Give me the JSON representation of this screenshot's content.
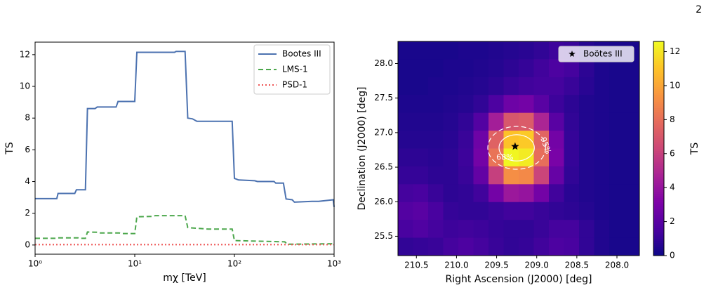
{
  "page_number": "2",
  "chart_data": [
    {
      "type": "line",
      "xscale": "log",
      "xlabel": "mχ [TeV]",
      "ylabel": "TS",
      "xlim": [
        1,
        1000
      ],
      "ylim": [
        -0.58,
        12.79
      ],
      "xticks": [
        {
          "value": 1,
          "label": "10⁰"
        },
        {
          "value": 10,
          "label": "10¹"
        },
        {
          "value": 100,
          "label": "10²"
        },
        {
          "value": 1000,
          "label": "10³"
        }
      ],
      "yticks": [
        0,
        2,
        4,
        6,
        8,
        10,
        12
      ],
      "legend": "upper right",
      "series": [
        {
          "name": "Bootes III",
          "color": "#4c72b0",
          "linestyle": "solid",
          "x": [
            1,
            1.65,
            1.7,
            2.5,
            2.6,
            3.2,
            3.35,
            4,
            4.2,
            6.5,
            6.8,
            10,
            10.5,
            25,
            26,
            32,
            34,
            38,
            42,
            95,
            100,
            110,
            160,
            170,
            250,
            260,
            310,
            330,
            380,
            400,
            600,
            700,
            980,
            1000
          ],
          "values": [
            2.92,
            2.92,
            3.25,
            3.25,
            3.48,
            3.48,
            8.6,
            8.6,
            8.7,
            8.7,
            9.05,
            9.05,
            12.15,
            12.15,
            12.2,
            12.2,
            8.0,
            7.95,
            7.8,
            7.8,
            4.2,
            4.1,
            4.05,
            4.0,
            4.0,
            3.9,
            3.9,
            2.9,
            2.85,
            2.7,
            2.75,
            2.75,
            2.85,
            2.4
          ]
        },
        {
          "name": "LMS-1",
          "color": "#4ca74c",
          "linestyle": "dashed",
          "x": [
            1,
            1.6,
            1.7,
            2.7,
            2.8,
            3.2,
            3.35,
            4.2,
            4.4,
            7,
            7.3,
            10,
            10.5,
            15,
            16,
            32,
            34,
            55,
            95,
            100,
            320,
            340,
            1000
          ],
          "values": [
            0.42,
            0.42,
            0.45,
            0.45,
            0.42,
            0.42,
            0.82,
            0.8,
            0.76,
            0.76,
            0.72,
            0.72,
            1.78,
            1.8,
            1.85,
            1.85,
            1.1,
            1.0,
            1.0,
            0.28,
            0.2,
            0.05,
            0.08
          ]
        },
        {
          "name": "PSD-1",
          "color": "#ee5555",
          "linestyle": "dotted",
          "x": [
            1,
            1000
          ],
          "values": [
            0.02,
            0.02
          ]
        }
      ]
    },
    {
      "type": "heatmap",
      "xlabel": "Right Ascension (J2000) [deg]",
      "ylabel": "Declination (J2000) [deg]",
      "colorbar_label": "TS",
      "colormap": "plasma",
      "xlim": [
        210.73,
        207.72
      ],
      "ylim": [
        25.22,
        28.32
      ],
      "clim": [
        0,
        12.6
      ],
      "xticks": [
        210.5,
        {
          "value": 210,
          "label": "210.0"
        },
        209.5,
        {
          "value": 209,
          "label": "209.0"
        },
        208.5,
        {
          "value": 208,
          "label": "208.0"
        }
      ],
      "yticks": [
        25.5,
        {
          "value": 26,
          "label": "26.0"
        },
        26.5,
        {
          "value": 27,
          "label": "27.0"
        },
        27.5,
        {
          "value": 28,
          "label": "28.0"
        }
      ],
      "cticks": [
        0,
        2,
        4,
        6,
        8,
        10,
        12
      ],
      "values": [
        [
          0.3,
          0.3,
          0.3,
          0.3,
          0.4,
          0.4,
          0.5,
          0.6,
          0.7,
          0.9,
          1.2,
          1.1,
          0.6,
          0.4,
          0.3,
          0.3
        ],
        [
          0.3,
          0.3,
          0.3,
          0.4,
          0.4,
          0.5,
          0.6,
          0.8,
          1.0,
          1.3,
          1.6,
          1.4,
          0.8,
          0.4,
          0.3,
          0.3
        ],
        [
          0.3,
          0.3,
          0.4,
          0.4,
          0.5,
          0.6,
          0.8,
          1.1,
          1.3,
          1.4,
          1.4,
          1.1,
          0.7,
          0.4,
          0.3,
          0.3
        ],
        [
          0.4,
          0.4,
          0.4,
          0.5,
          0.6,
          0.9,
          1.6,
          2.6,
          2.8,
          2.0,
          1.2,
          0.8,
          0.5,
          0.4,
          0.3,
          0.3
        ],
        [
          0.5,
          0.5,
          0.5,
          0.6,
          0.9,
          1.8,
          4.5,
          7.0,
          7.2,
          4.8,
          2.0,
          0.9,
          0.5,
          0.4,
          0.3,
          0.3
        ],
        [
          0.6,
          0.6,
          0.6,
          0.7,
          1.1,
          2.6,
          7.5,
          11.0,
          11.2,
          7.6,
          2.8,
          1.0,
          0.5,
          0.4,
          0.3,
          0.3
        ],
        [
          0.8,
          0.8,
          0.7,
          0.8,
          1.2,
          2.8,
          8.2,
          12.5,
          12.2,
          8.0,
          3.0,
          1.0,
          0.5,
          0.4,
          0.3,
          0.3
        ],
        [
          1.0,
          1.0,
          0.8,
          0.8,
          1.1,
          2.3,
          6.0,
          9.2,
          9.0,
          6.2,
          2.4,
          0.9,
          0.5,
          0.4,
          0.3,
          0.3
        ],
        [
          1.4,
          1.5,
          1.1,
          0.8,
          0.9,
          1.3,
          2.8,
          4.2,
          4.0,
          2.8,
          1.3,
          0.7,
          0.5,
          0.4,
          0.3,
          0.3
        ],
        [
          1.8,
          2.0,
          1.5,
          1.0,
          0.9,
          0.9,
          1.1,
          1.3,
          1.3,
          1.1,
          0.9,
          0.8,
          0.6,
          0.4,
          0.3,
          0.3
        ],
        [
          1.5,
          1.7,
          1.4,
          1.2,
          1.3,
          1.2,
          1.0,
          0.9,
          0.9,
          1.1,
          1.4,
          1.4,
          0.9,
          0.5,
          0.3,
          0.3
        ],
        [
          0.9,
          1.0,
          1.1,
          1.4,
          1.6,
          1.4,
          1.1,
          0.9,
          1.0,
          1.3,
          1.6,
          1.5,
          0.9,
          0.5,
          0.3,
          0.3
        ]
      ],
      "marker": {
        "name": "Boötes III",
        "ra": 209.27,
        "dec": 26.8,
        "color": "#000000"
      },
      "legend": "upper right",
      "contours": [
        {
          "label": "68%",
          "ra": 209.25,
          "dec": 26.78,
          "ra_radius": 0.22,
          "dec_radius": 0.19,
          "color": "#ffffff",
          "linestyle": "solid"
        },
        {
          "label": "95%",
          "ra": 209.25,
          "dec": 26.78,
          "ra_radius": 0.36,
          "dec_radius": 0.31,
          "color": "#ffffff",
          "linestyle": "dashed"
        }
      ]
    }
  ]
}
